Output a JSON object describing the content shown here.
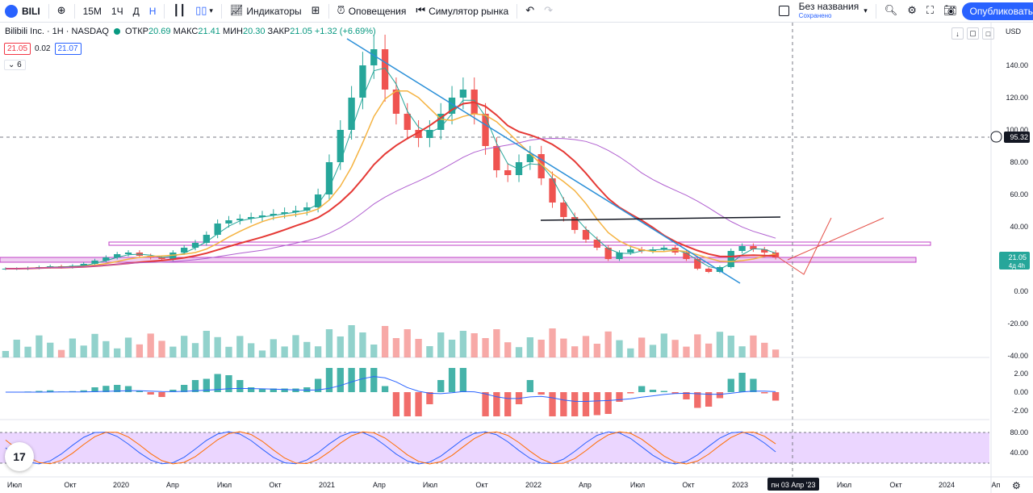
{
  "toolbar": {
    "symbol": "BILI",
    "intervals": [
      "15М",
      "1Ч",
      "Д",
      "Н"
    ],
    "active_interval": "Н",
    "indicators_label": "Индикаторы",
    "alerts_label": "Оповещения",
    "simulator_label": "Симулятор рынка",
    "layout_name": "Без названия",
    "layout_status": "Сохранено",
    "publish_label": "Опубликовать"
  },
  "legend": {
    "title": "Bilibili Inc. · 1H · NASDAQ",
    "open_label": "ОТКР",
    "open": "20.69",
    "high_label": "МАКС",
    "high": "21.41",
    "low_label": "МИН",
    "low": "20.30",
    "close_label": "ЗАКР",
    "close": "21.05",
    "change": "+1.32 (+6.69%)",
    "sell_price": "21.05",
    "spread": "0.02",
    "buy_price": "21.07",
    "collapsed_count": "6"
  },
  "currency": "USD",
  "colors": {
    "up": "#26a69a",
    "down": "#ef5350",
    "accent": "#2962ff",
    "ema_red": "#e53935",
    "ema_orange": "#f5b341",
    "ma_purple": "#b05fd0",
    "trend_blue": "#2a8fd8",
    "zone_magenta": "#c041c7",
    "rsi_bg": "#e6ccff"
  },
  "chart_data": {
    "type": "candlestick",
    "ylim": [
      -40,
      160
    ],
    "price_ticks": [
      "140.00",
      "120.00",
      "100.00",
      "80.00",
      "60.00",
      "40.00",
      "20.00",
      "0.00",
      "-20.00",
      "-40.00"
    ],
    "price_tick_values": [
      140,
      120,
      100,
      80,
      60,
      40,
      20,
      0,
      -20,
      -40
    ],
    "crosshair_price": "95.32",
    "current_price": "21.05",
    "current_countdown": "4д 4h",
    "macd_ticks": [
      "2.00",
      "0.00",
      "-2.00"
    ],
    "rsi_ticks": [
      "80.00",
      "40.00"
    ],
    "time_ticks": [
      "Июл",
      "Окт",
      "2020",
      "Апр",
      "Июл",
      "Окт",
      "2021",
      "Апр",
      "Июл",
      "Окт",
      "2022",
      "Апр",
      "Июл",
      "Окт",
      "2023",
      "Июл",
      "Окт",
      "2024",
      "Ап"
    ],
    "crosshair_date": "пн 03 Апр '23",
    "closes": [
      14,
      14,
      14.5,
      15,
      15.5,
      15,
      15.8,
      17,
      19,
      21,
      23,
      24,
      22,
      21,
      20,
      24,
      27,
      30,
      35,
      42,
      44,
      45,
      46,
      47,
      48,
      49,
      50,
      52,
      60,
      80,
      100,
      120,
      140,
      150,
      125,
      110,
      100,
      95,
      100,
      110,
      120,
      125,
      110,
      90,
      75,
      72,
      80,
      85,
      70,
      55,
      46,
      38,
      32,
      27,
      20,
      24,
      26,
      25,
      26,
      27,
      24,
      20,
      14,
      12,
      15,
      25,
      28,
      26,
      24,
      21
    ]
  }
}
